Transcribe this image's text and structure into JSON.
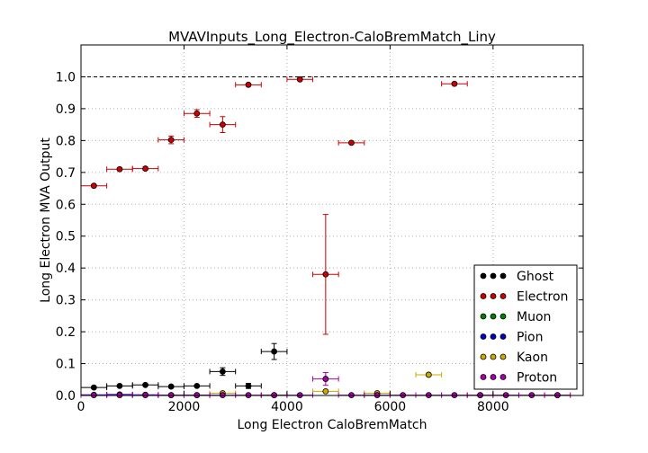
{
  "chart_data": {
    "type": "scatter",
    "title": "MVAVInputs_Long_Electron-CaloBremMatch_Liny",
    "xlabel": "Long Electron CaloBremMatch",
    "ylabel": "Long Electron MVA Output",
    "xlim": [
      0,
      9750
    ],
    "ylim": [
      0,
      1.1
    ],
    "xticks": [
      "0",
      "2000",
      "4000",
      "6000",
      "8000"
    ],
    "yticks": [
      "0.0",
      "0.1",
      "0.2",
      "0.3",
      "0.4",
      "0.5",
      "0.6",
      "0.7",
      "0.8",
      "0.9",
      "1.0"
    ],
    "grid": true,
    "reference_line_y": 1.0,
    "legend_position": "lower-right",
    "series": [
      {
        "name": "Ghost",
        "color": "#000000",
        "points": [
          {
            "x": 250,
            "y": 0.025,
            "xerr": 250,
            "yerr": 0.003
          },
          {
            "x": 750,
            "y": 0.03,
            "xerr": 250,
            "yerr": 0.003
          },
          {
            "x": 1250,
            "y": 0.033,
            "xerr": 250,
            "yerr": 0.003
          },
          {
            "x": 1750,
            "y": 0.028,
            "xerr": 250,
            "yerr": 0.003
          },
          {
            "x": 2250,
            "y": 0.03,
            "xerr": 250,
            "yerr": 0.003
          },
          {
            "x": 2750,
            "y": 0.075,
            "xerr": 250,
            "yerr": 0.012
          },
          {
            "x": 3250,
            "y": 0.03,
            "xerr": 250,
            "yerr": 0.008
          },
          {
            "x": 3750,
            "y": 0.138,
            "xerr": 250,
            "yerr": 0.025
          }
        ]
      },
      {
        "name": "Electron",
        "color": "#cc0000",
        "points": [
          {
            "x": 250,
            "y": 0.658,
            "xerr": 250,
            "yerr": 0.004
          },
          {
            "x": 750,
            "y": 0.71,
            "xerr": 250,
            "yerr": 0.004
          },
          {
            "x": 1250,
            "y": 0.712,
            "xerr": 250,
            "yerr": 0.005
          },
          {
            "x": 1750,
            "y": 0.802,
            "xerr": 250,
            "yerr": 0.012
          },
          {
            "x": 2250,
            "y": 0.885,
            "xerr": 250,
            "yerr": 0.012
          },
          {
            "x": 2750,
            "y": 0.85,
            "xerr": 250,
            "yerr": 0.025
          },
          {
            "x": 3250,
            "y": 0.975,
            "xerr": 250,
            "yerr": 0.004
          },
          {
            "x": 4250,
            "y": 0.992,
            "xerr": 250,
            "yerr": 0.004
          },
          {
            "x": 4750,
            "y": 0.38,
            "xerr": 250,
            "yerr": 0.188
          },
          {
            "x": 5250,
            "y": 0.793,
            "xerr": 250,
            "yerr": 0.004
          },
          {
            "x": 7250,
            "y": 0.978,
            "xerr": 250,
            "yerr": 0.004
          }
        ]
      },
      {
        "name": "Muon",
        "color": "#007f00",
        "points": [
          {
            "x": 3750,
            "y": 0.001,
            "xerr": 250,
            "yerr": 0.001
          }
        ]
      },
      {
        "name": "Pion",
        "color": "#0000cc",
        "points": [
          {
            "x": 250,
            "y": 0.002,
            "xerr": 250,
            "yerr": 0.001
          },
          {
            "x": 750,
            "y": 0.003,
            "xerr": 250,
            "yerr": 0.001
          },
          {
            "x": 1250,
            "y": 0.002,
            "xerr": 250,
            "yerr": 0.001
          },
          {
            "x": 1750,
            "y": 0.001,
            "xerr": 250,
            "yerr": 0.001
          },
          {
            "x": 2250,
            "y": 0.001,
            "xerr": 250,
            "yerr": 0.001
          }
        ]
      },
      {
        "name": "Kaon",
        "color": "#ccaa00",
        "points": [
          {
            "x": 2750,
            "y": 0.007,
            "xerr": 250,
            "yerr": 0.003
          },
          {
            "x": 4750,
            "y": 0.013,
            "xerr": 250,
            "yerr": 0.004
          },
          {
            "x": 5750,
            "y": 0.007,
            "xerr": 250,
            "yerr": 0.003
          },
          {
            "x": 6750,
            "y": 0.065,
            "xerr": 250,
            "yerr": 0.003
          },
          {
            "x": 7750,
            "y": 0.001,
            "xerr": 250,
            "yerr": 0.001
          },
          {
            "x": 9250,
            "y": 0.001,
            "xerr": 250,
            "yerr": 0.001
          }
        ]
      },
      {
        "name": "Proton",
        "color": "#aa00aa",
        "points": [
          {
            "x": 250,
            "y": 0.001,
            "xerr": 250,
            "yerr": 0.001
          },
          {
            "x": 750,
            "y": 0.001,
            "xerr": 250,
            "yerr": 0.001
          },
          {
            "x": 1250,
            "y": 0.001,
            "xerr": 250,
            "yerr": 0.001
          },
          {
            "x": 1750,
            "y": 0.001,
            "xerr": 250,
            "yerr": 0.001
          },
          {
            "x": 2250,
            "y": 0.001,
            "xerr": 250,
            "yerr": 0.001
          },
          {
            "x": 2750,
            "y": 0.001,
            "xerr": 250,
            "yerr": 0.001
          },
          {
            "x": 3250,
            "y": 0.001,
            "xerr": 250,
            "yerr": 0.001
          },
          {
            "x": 3750,
            "y": 0.001,
            "xerr": 250,
            "yerr": 0.001
          },
          {
            "x": 4250,
            "y": 0.001,
            "xerr": 250,
            "yerr": 0.001
          },
          {
            "x": 4750,
            "y": 0.052,
            "xerr": 250,
            "yerr": 0.02
          },
          {
            "x": 5250,
            "y": 0.001,
            "xerr": 250,
            "yerr": 0.001
          },
          {
            "x": 5750,
            "y": 0.001,
            "xerr": 250,
            "yerr": 0.001
          },
          {
            "x": 6250,
            "y": 0.001,
            "xerr": 250,
            "yerr": 0.001
          },
          {
            "x": 6750,
            "y": 0.001,
            "xerr": 250,
            "yerr": 0.001
          },
          {
            "x": 7250,
            "y": 0.001,
            "xerr": 250,
            "yerr": 0.001
          },
          {
            "x": 7750,
            "y": 0.001,
            "xerr": 250,
            "yerr": 0.001
          },
          {
            "x": 8250,
            "y": 0.001,
            "xerr": 250,
            "yerr": 0.001
          },
          {
            "x": 8750,
            "y": 0.001,
            "xerr": 250,
            "yerr": 0.001
          },
          {
            "x": 9250,
            "y": 0.001,
            "xerr": 250,
            "yerr": 0.001
          }
        ]
      }
    ]
  }
}
